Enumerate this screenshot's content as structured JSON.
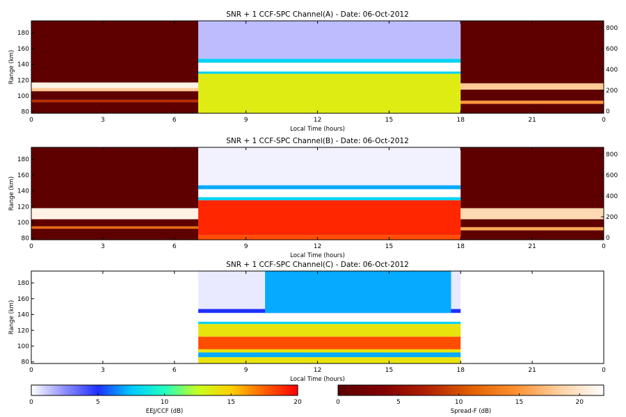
{
  "chart_data": [
    {
      "type": "heatmap",
      "title": "SNR + 1 CCF-SPC Channel(A) - Date: 06-Oct-2012",
      "xlabel": "Local Time (hours)",
      "ylabel": "Range (km)",
      "xlim": [
        0,
        24
      ],
      "ylim": [
        78,
        195
      ],
      "xticks": [
        "0",
        "3",
        "6",
        "9",
        "12",
        "15",
        "18",
        "21",
        "0"
      ],
      "yticks": [
        "80",
        "100",
        "120",
        "140",
        "160",
        "180"
      ],
      "y2ticks": [
        "0",
        "200",
        "400",
        "600",
        "800"
      ],
      "colorscale": "eej_ccf",
      "regions": [
        {
          "name": "night-spread-f",
          "x": [
            0,
            7.0
          ],
          "y": [
            78,
            195
          ],
          "scale": "spread_f",
          "bands": [
            {
              "y": [
                78,
                92
              ],
              "v": 0.5
            },
            {
              "y": [
                92,
                95
              ],
              "v": 8
            },
            {
              "y": [
                95,
                106
              ],
              "v": 0.5
            },
            {
              "y": [
                106,
                110
              ],
              "v": 18
            },
            {
              "y": [
                110,
                117
              ],
              "v": 21
            },
            {
              "y": [
                117,
                195
              ],
              "v": 0.5
            }
          ]
        },
        {
          "name": "day-eej",
          "x": [
            7.0,
            18.0
          ],
          "y": [
            78,
            195
          ],
          "scale": "eej_ccf",
          "bands": [
            {
              "y": [
                78,
                128
              ],
              "v": 13.5
            },
            {
              "y": [
                128,
                131
              ],
              "v": 8
            },
            {
              "y": [
                131,
                142
              ],
              "v": 0
            },
            {
              "y": [
                142,
                147
              ],
              "v": 8
            },
            {
              "y": [
                147,
                195
              ],
              "v": 1.5
            }
          ]
        },
        {
          "name": "evening-spread-f",
          "x": [
            18.0,
            24
          ],
          "y": [
            78,
            195
          ],
          "scale": "spread_f",
          "bands": [
            {
              "y": [
                78,
                90
              ],
              "v": 0.5
            },
            {
              "y": [
                90,
                94
              ],
              "v": 15
            },
            {
              "y": [
                94,
                108
              ],
              "v": 0.5
            },
            {
              "y": [
                108,
                116
              ],
              "v": 18
            },
            {
              "y": [
                116,
                195
              ],
              "v": 0.5
            }
          ]
        }
      ]
    },
    {
      "type": "heatmap",
      "title": "SNR + 1 CCF-SPC Channel(B) - Date: 06-Oct-2012",
      "xlabel": "Local Time (hours)",
      "ylabel": "Range (km)",
      "xlim": [
        0,
        24
      ],
      "ylim": [
        78,
        195
      ],
      "xticks": [
        "0",
        "3",
        "6",
        "9",
        "12",
        "15",
        "18",
        "21",
        "0"
      ],
      "yticks": [
        "80",
        "100",
        "120",
        "140",
        "160",
        "180"
      ],
      "y2ticks": [
        "0",
        "200",
        "400",
        "600",
        "800"
      ],
      "colorscale": "eej_ccf",
      "regions": [
        {
          "name": "night-spread-f",
          "x": [
            0,
            7.0
          ],
          "y": [
            78,
            195
          ],
          "scale": "spread_f",
          "bands": [
            {
              "y": [
                78,
                92
              ],
              "v": 0.5
            },
            {
              "y": [
                92,
                95
              ],
              "v": 12
            },
            {
              "y": [
                95,
                104
              ],
              "v": 0.5
            },
            {
              "y": [
                104,
                118
              ],
              "v": 21
            },
            {
              "y": [
                118,
                195
              ],
              "v": 0.5
            }
          ]
        },
        {
          "name": "day-eej",
          "x": [
            7.0,
            18.0
          ],
          "y": [
            78,
            195
          ],
          "scale": "eej_ccf",
          "bands": [
            {
              "y": [
                78,
                84
              ],
              "v": 18
            },
            {
              "y": [
                84,
                128
              ],
              "v": 19
            },
            {
              "y": [
                128,
                132
              ],
              "v": 8
            },
            {
              "y": [
                132,
                142
              ],
              "v": 0
            },
            {
              "y": [
                142,
                147
              ],
              "v": 7
            },
            {
              "y": [
                147,
                195
              ],
              "v": 0.3
            }
          ]
        },
        {
          "name": "evening-spread-f",
          "x": [
            18.0,
            24
          ],
          "y": [
            78,
            195
          ],
          "scale": "spread_f",
          "bands": [
            {
              "y": [
                78,
                90
              ],
              "v": 0.5
            },
            {
              "y": [
                90,
                94
              ],
              "v": 16
            },
            {
              "y": [
                94,
                104
              ],
              "v": 0.5
            },
            {
              "y": [
                104,
                118
              ],
              "v": 19
            },
            {
              "y": [
                118,
                195
              ],
              "v": 0.5
            }
          ]
        }
      ]
    },
    {
      "type": "heatmap",
      "title": "SNR + 1 CCF-SPC Channel(C) - Date: 06-Oct-2012",
      "xlabel": "Local Time (hours)",
      "ylabel": "Range (km)",
      "xlim": [
        0,
        24
      ],
      "ylim": [
        78,
        195
      ],
      "xticks": [
        "0",
        "3",
        "6",
        "9",
        "12",
        "15",
        "18",
        "21",
        "0"
      ],
      "yticks": [
        "80",
        "100",
        "120",
        "140",
        "160",
        "180"
      ],
      "y2ticks": [],
      "colorscale": "eej_ccf",
      "regions": [
        {
          "name": "day-eej",
          "x": [
            7.0,
            18.0
          ],
          "y": [
            78,
            195
          ],
          "scale": "eej_ccf",
          "bands": [
            {
              "y": [
                78,
                86
              ],
              "v": 14
            },
            {
              "y": [
                86,
                92
              ],
              "v": 7
            },
            {
              "y": [
                92,
                96
              ],
              "v": 14
            },
            {
              "y": [
                96,
                112
              ],
              "v": 18
            },
            {
              "y": [
                112,
                128
              ],
              "v": 14
            },
            {
              "y": [
                128,
                131
              ],
              "v": 8
            },
            {
              "y": [
                131,
                142
              ],
              "v": 0
            },
            {
              "y": [
                142,
                147
              ],
              "v": 5
            },
            {
              "y": [
                147,
                195
              ],
              "v": 0.5
            }
          ]
        },
        {
          "name": "upper-echoes",
          "x": [
            9.8,
            17.6
          ],
          "y": [
            142,
            195
          ],
          "scale": "eej_ccf",
          "bands": [
            {
              "y": [
                142,
                195
              ],
              "v": 7
            }
          ]
        }
      ]
    }
  ],
  "colorbars": [
    {
      "label": "EEJ/CCF (dB)",
      "ticks": [
        "0",
        "5",
        "10",
        "15",
        "20"
      ],
      "range": [
        0,
        20
      ],
      "scale": "eej_ccf"
    },
    {
      "label": "Spread-F (dB)",
      "ticks": [
        "0",
        "5",
        "10",
        "15",
        "20"
      ],
      "range": [
        0,
        22
      ],
      "scale": "spread_f"
    }
  ],
  "colors": {
    "eej_ccf": [
      "#ffffff",
      "#8f8fff",
      "#2030ff",
      "#00c8ff",
      "#20ffc0",
      "#c8ff20",
      "#ffd000",
      "#ff6000",
      "#ff0000"
    ],
    "spread_f": [
      "#5a0000",
      "#800000",
      "#b02000",
      "#e06000",
      "#ff9030",
      "#ffd0a0",
      "#ffffff"
    ]
  }
}
